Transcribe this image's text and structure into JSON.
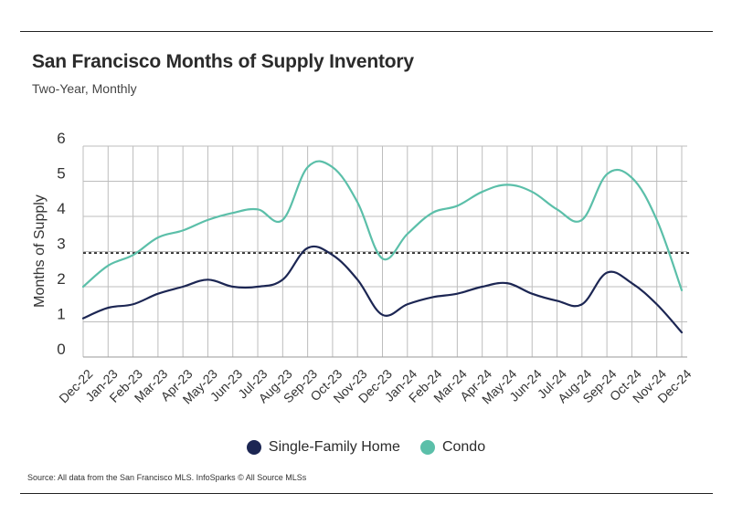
{
  "header": {
    "title": "San Francisco Months of Supply Inventory",
    "subtitle": "Two-Year, Monthly"
  },
  "footer": {
    "source": "Source:  All data from the San Francisco MLS. InfoSparks © All Source MLSs"
  },
  "colors": {
    "single_family": "#1c2653",
    "condo": "#5bbfa9",
    "grid": "#bdbdbd",
    "reference": "#111111"
  },
  "chart_data": {
    "type": "line",
    "title": "San Francisco Months of Supply Inventory",
    "subtitle": "Two-Year, Monthly",
    "xlabel": "",
    "ylabel": "Months of Supply",
    "ylim": [
      0,
      6
    ],
    "y_ticks": [
      0,
      1,
      2,
      3,
      4,
      5,
      6
    ],
    "y_tick_labels": [
      "0",
      "1",
      "2",
      "3",
      "4",
      "5",
      "6"
    ],
    "categories": [
      "Dec-22",
      "Jan-23",
      "Feb-23",
      "Mar-23",
      "Apr-23",
      "May-23",
      "Jun-23",
      "Jul-23",
      "Aug-23",
      "Sep-23",
      "Oct-23",
      "Nov-23",
      "Dec-23",
      "Jan-24",
      "Feb-24",
      "Mar-24",
      "Apr-24",
      "May-24",
      "Jun-24",
      "Jul-24",
      "Aug-24",
      "Sep-24",
      "Oct-24",
      "Nov-24",
      "Dec-24"
    ],
    "series": [
      {
        "name": "Single-Family Home",
        "values": [
          1.1,
          1.4,
          1.5,
          1.8,
          2.0,
          2.2,
          2.0,
          2.0,
          2.2,
          3.1,
          2.9,
          2.2,
          1.2,
          1.5,
          1.7,
          1.8,
          2.0,
          2.1,
          1.8,
          1.6,
          1.5,
          2.4,
          2.1,
          1.5,
          0.7
        ]
      },
      {
        "name": "Condo",
        "values": [
          2.0,
          2.6,
          2.9,
          3.4,
          3.6,
          3.9,
          4.1,
          4.2,
          3.9,
          5.4,
          5.4,
          4.4,
          2.8,
          3.5,
          4.1,
          4.3,
          4.7,
          4.9,
          4.7,
          4.2,
          3.9,
          5.2,
          5.1,
          3.9,
          1.9
        ]
      }
    ],
    "reference_line": 2.96,
    "grid": true,
    "legend_position": "bottom-center"
  }
}
